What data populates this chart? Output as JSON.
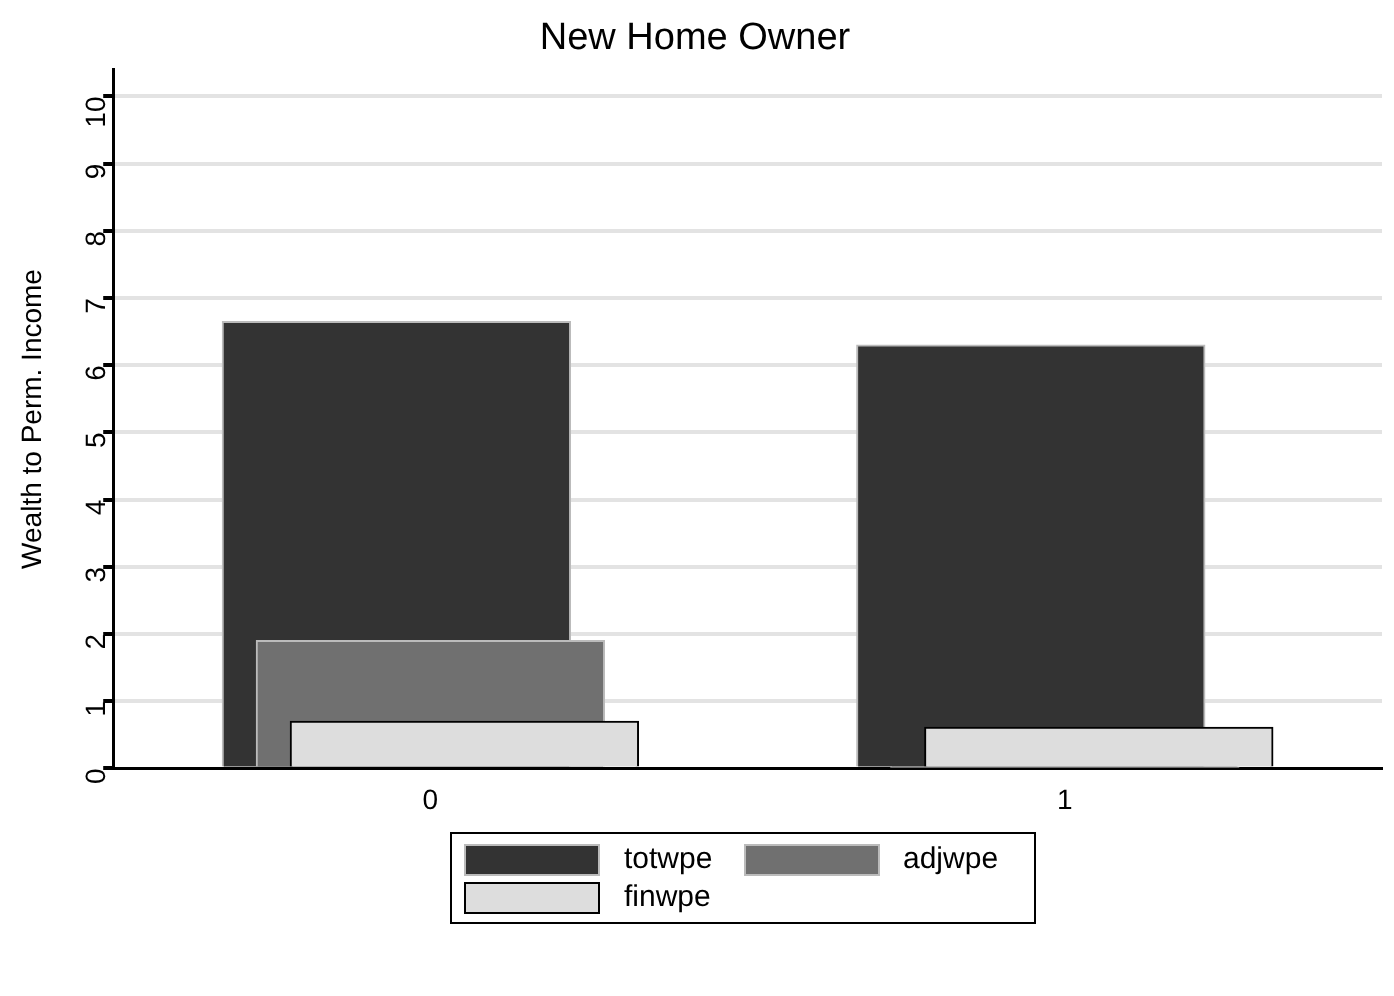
{
  "chart_data": {
    "type": "bar",
    "title": "New Home Owner",
    "ylabel": "Wealth to Perm. Income",
    "categories": [
      "0",
      "1"
    ],
    "series": [
      {
        "name": "totwpe",
        "color": "#333333",
        "values": [
          6.65,
          6.3
        ]
      },
      {
        "name": "adjwpe",
        "color": "#707070",
        "values": [
          1.9,
          0.02
        ]
      },
      {
        "name": "finwpe",
        "color": "#dddddd",
        "values": [
          0.7,
          0.61
        ]
      }
    ],
    "ylim": [
      0,
      10.4
    ],
    "yticks": [
      0,
      1,
      2,
      3,
      4,
      5,
      6,
      7,
      8,
      9,
      10
    ],
    "grid": "y",
    "legend": "bottom"
  }
}
